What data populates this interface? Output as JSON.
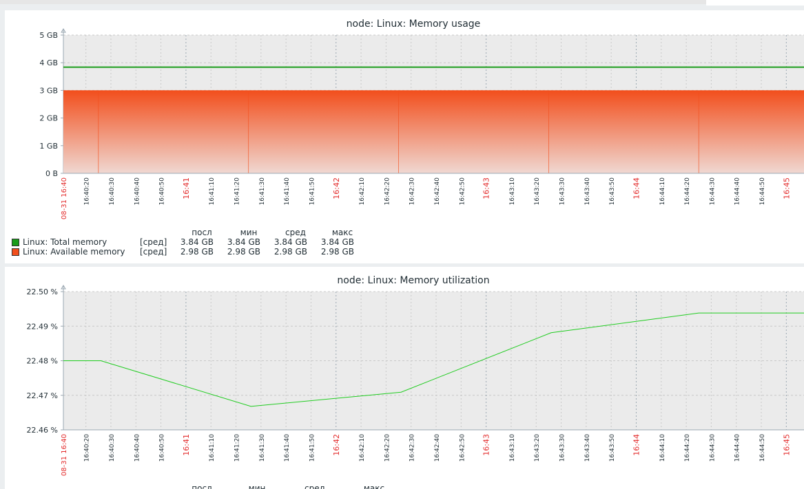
{
  "charts": [
    {
      "title": "node: Linux: Memory usage",
      "type": "area",
      "x_start": "08-31 16:40:11",
      "x_end": "16:45:09",
      "first_label": "08-31 16:40",
      "y_ticks": [
        "0 B",
        "1 GB",
        "2 GB",
        "3 GB",
        "4 GB",
        "5 GB"
      ],
      "ylim": [
        0,
        5
      ],
      "yunit": "GB",
      "series": [
        {
          "name": "Linux: Total memory",
          "color": "#1a9c1a",
          "kind": "line",
          "func": "[сред]",
          "last": "3.84 GB",
          "min": "3.84 GB",
          "avg": "3.84 GB",
          "max": "3.84 GB",
          "points": [
            [
              "16:40:11",
              3.84
            ],
            [
              "16:45:09",
              3.84
            ]
          ]
        },
        {
          "name": "Linux: Available memory",
          "color": "#f24f1d",
          "kind": "area",
          "func": "[сред]",
          "last": "2.98 GB",
          "min": "2.98 GB",
          "avg": "2.98 GB",
          "max": "2.98 GB",
          "points": [
            [
              "16:40:11",
              2.98
            ],
            [
              "16:40:25",
              2.98
            ],
            [
              "16:41:25",
              2.98
            ],
            [
              "16:42:25",
              2.98
            ],
            [
              "16:43:25",
              2.98
            ],
            [
              "16:44:25",
              2.98
            ],
            [
              "16:45:09",
              2.98
            ]
          ]
        }
      ]
    },
    {
      "title": "node: Linux: Memory utilization",
      "type": "line",
      "x_start": "08-31 16:40:11",
      "x_end": "16:45:09",
      "first_label": "08-31 16:40",
      "y_ticks": [
        "22.46 %",
        "22.47 %",
        "22.48 %",
        "22.49 %",
        "22.50 %"
      ],
      "ylim": [
        22.46,
        22.5
      ],
      "yunit": "%",
      "series": [
        {
          "color": "#1fcc1f",
          "kind": "line",
          "points": [
            [
              "16:40:11",
              22.48
            ],
            [
              "16:40:26",
              22.48
            ],
            [
              "16:41:26",
              22.4668
            ],
            [
              "16:42:26",
              22.4709
            ],
            [
              "16:43:26",
              22.4881
            ],
            [
              "16:44:25",
              22.4938
            ],
            [
              "16:45:09",
              22.4938
            ]
          ]
        }
      ]
    }
  ],
  "legend_headers": {
    "last": "посл",
    "min": "мин",
    "avg": "сред",
    "max": "макс"
  },
  "colors": {
    "major_tick": "#e32b2b",
    "plot_bg": "#ebebeb",
    "grid": "#c8c8c8"
  }
}
